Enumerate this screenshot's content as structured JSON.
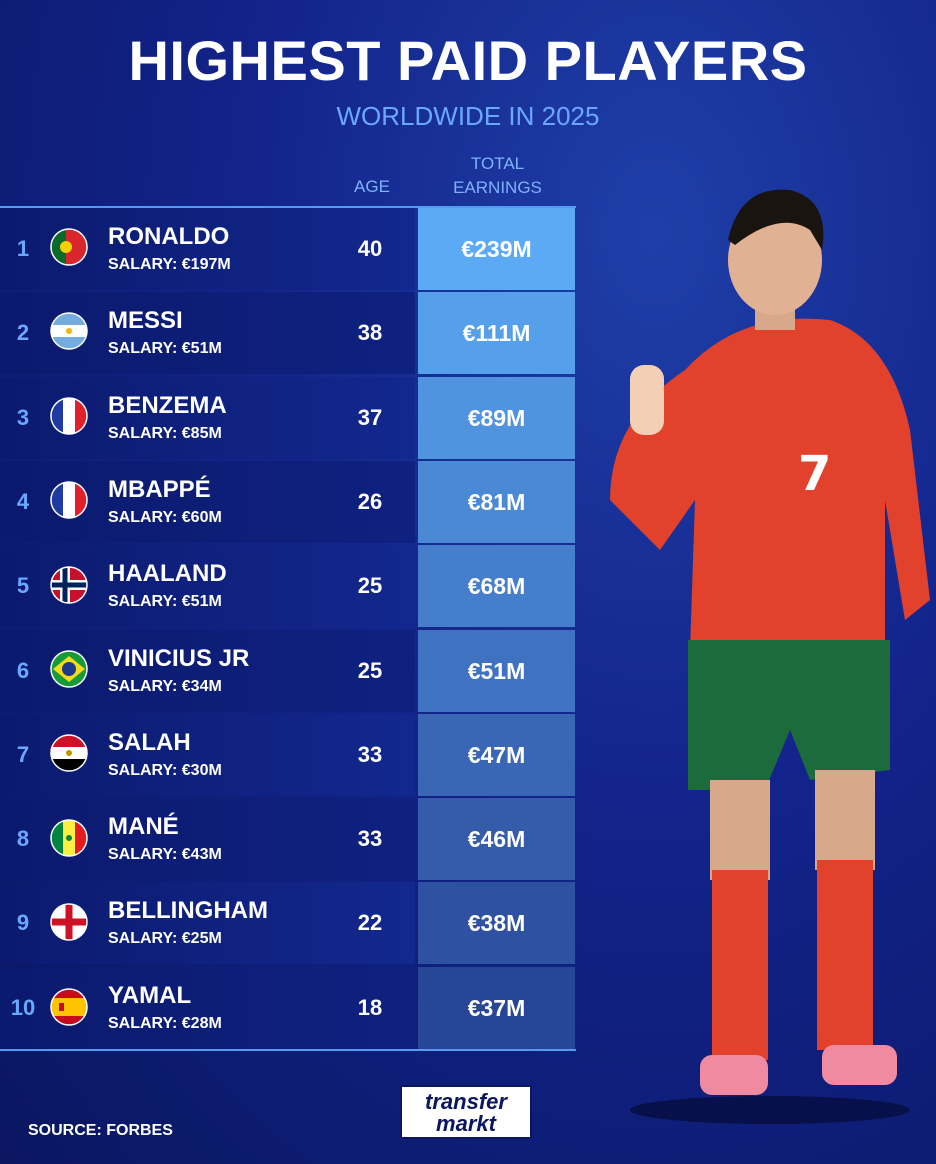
{
  "header": {
    "title": "HIGHEST PAID PLAYERS",
    "subtitle": "WORLDWIDE IN 2025"
  },
  "table": {
    "columns": [
      "AGE",
      "TOTAL EARNINGS"
    ],
    "rows": [
      {
        "rank": 1,
        "name": "RONALDO",
        "salary": "SALARY: €197M",
        "age": 40,
        "earnings": "€239M"
      },
      {
        "rank": 2,
        "name": "MESSI",
        "salary": "SALARY: €51M",
        "age": 38,
        "earnings": "€111M"
      },
      {
        "rank": 3,
        "name": "BENZEMA",
        "salary": "SALARY: €85M",
        "age": 37,
        "earnings": "€89M"
      },
      {
        "rank": 4,
        "name": "MBAPPÉ",
        "salary": "SALARY: €60M",
        "age": 26,
        "earnings": "€81M"
      },
      {
        "rank": 5,
        "name": "HAALAND",
        "salary": "SALARY: €51M",
        "age": 25,
        "earnings": "€68M"
      },
      {
        "rank": 6,
        "name": "VINICIUS JR",
        "salary": "SALARY: €34M",
        "age": 25,
        "earnings": "€51M"
      },
      {
        "rank": 7,
        "name": "SALAH",
        "salary": "SALARY: €30M",
        "age": 33,
        "earnings": "€47M"
      },
      {
        "rank": 8,
        "name": "MANÉ",
        "salary": "SALARY: €43M",
        "age": 33,
        "earnings": "€46M"
      },
      {
        "rank": 9,
        "name": "BELLINGHAM",
        "salary": "SALARY: €25M",
        "age": 22,
        "earnings": "€38M"
      },
      {
        "rank": 10,
        "name": "YAMAL",
        "salary": "SALARY: €28M",
        "age": 18,
        "earnings": "€37M"
      }
    ]
  },
  "footer": {
    "source": "SOURCE: FORBES",
    "logo": [
      "transfer",
      "markt"
    ]
  }
}
